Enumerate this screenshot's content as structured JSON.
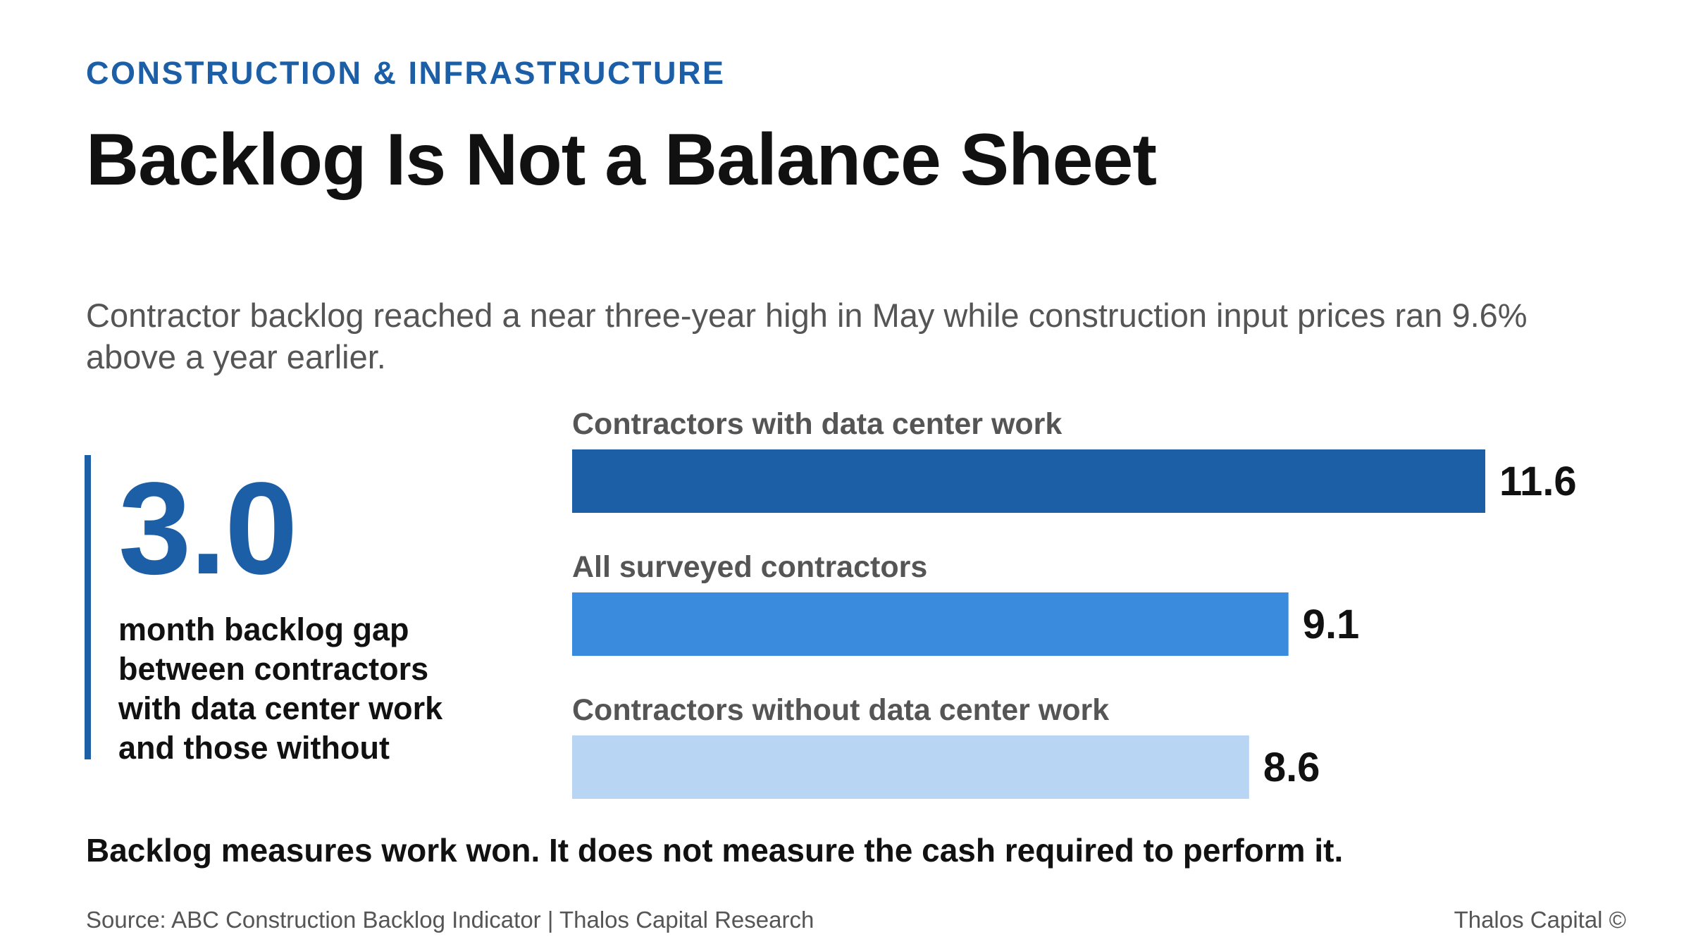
{
  "header": {
    "kicker": "CONSTRUCTION & INFRASTRUCTURE",
    "title": "Backlog Is Not a Balance Sheet",
    "subtitle": "Contractor backlog reached a near three-year high in May while construction input prices ran 9.6% above a year earlier."
  },
  "callout": {
    "value": "3.0",
    "description": "month backlog gap between contractors with data center work and those without"
  },
  "chart_data": {
    "type": "bar",
    "orientation": "horizontal",
    "categories": [
      "Contractors with data center work",
      "All surveyed contractors",
      "Contractors without data center work"
    ],
    "values": [
      11.6,
      9.1,
      8.6
    ],
    "value_labels": [
      "11.6",
      "9.1",
      "8.6"
    ],
    "colors": [
      "#1c5fa6",
      "#3a8ade",
      "#b8d5f3"
    ],
    "xlim": [
      0,
      11.6
    ],
    "grid": false,
    "legend": "none"
  },
  "footer": {
    "takeaway": "Backlog measures work won. It does not measure the cash required to perform it.",
    "source": "Source: ABC Construction Backlog Indicator | Thalos Capital Research",
    "credit": "Thalos Capital ©"
  }
}
